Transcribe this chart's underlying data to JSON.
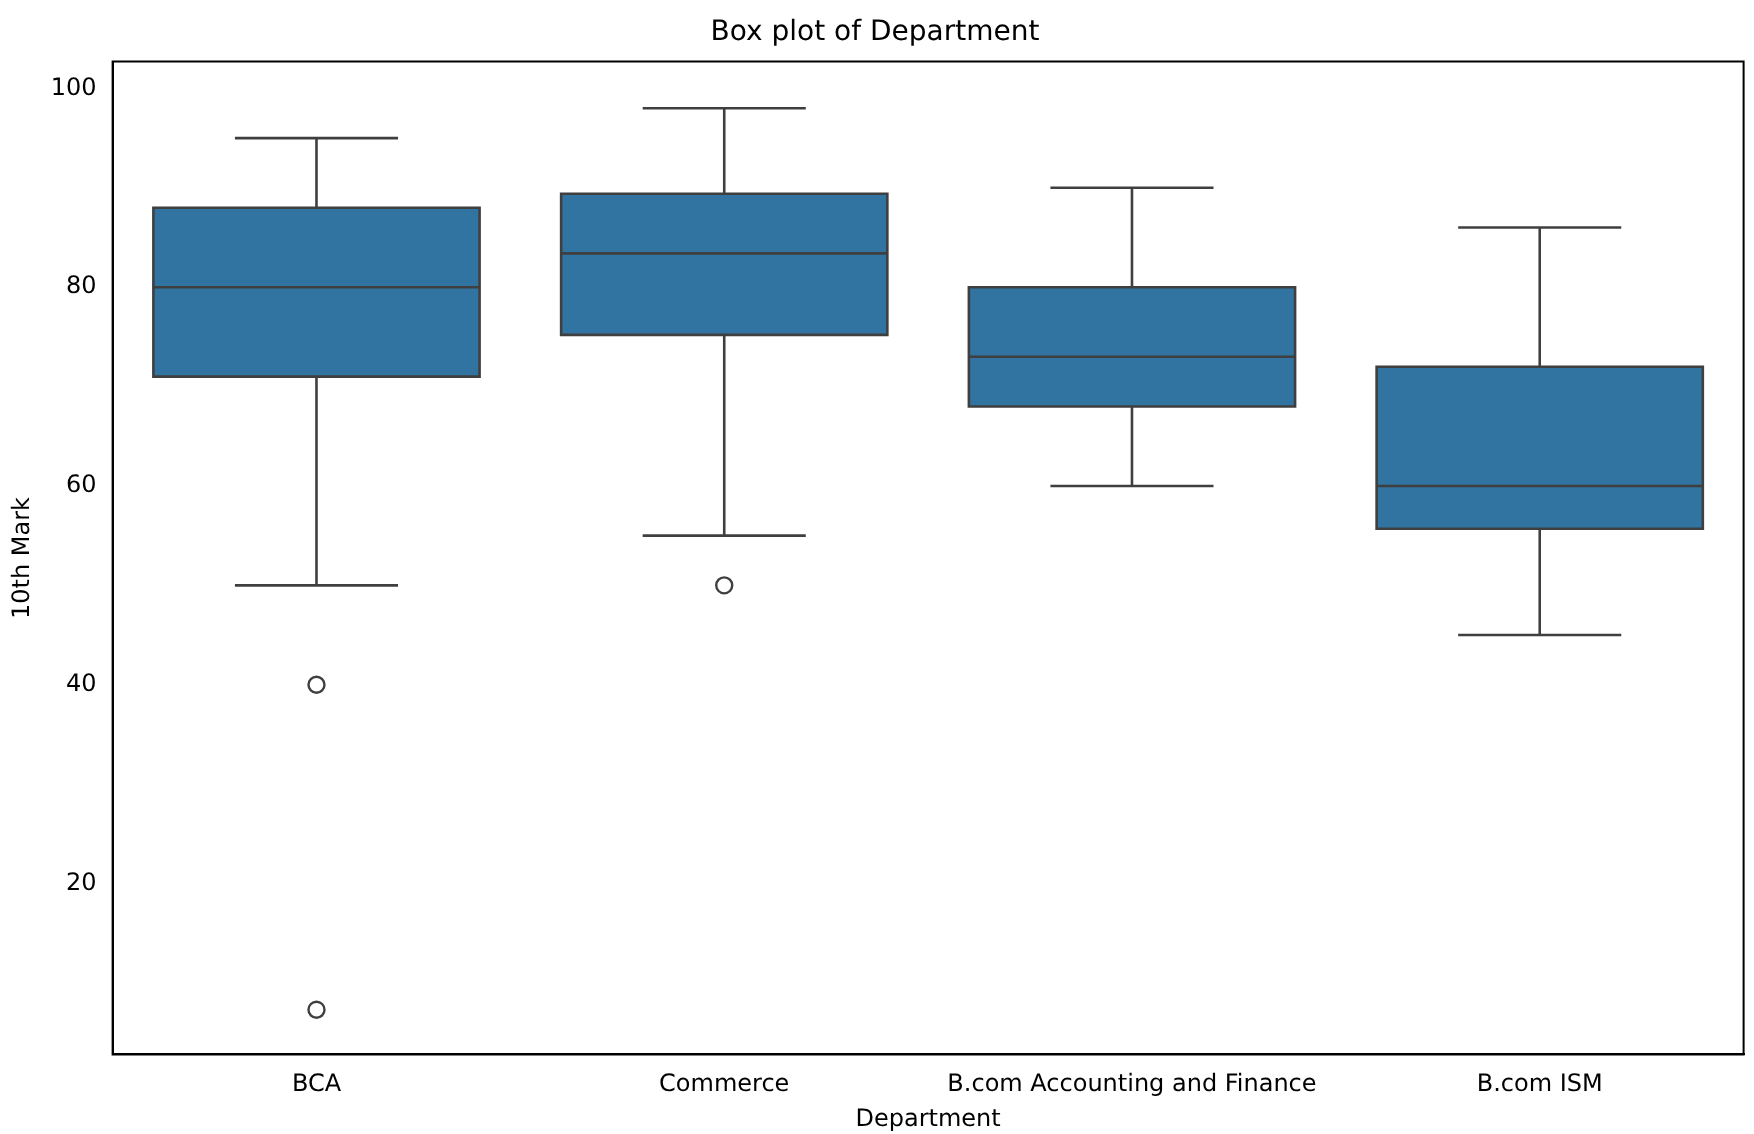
{
  "chart_data": {
    "type": "box",
    "title": "Box plot of Department",
    "xlabel": "Department",
    "ylabel": "10th Mark",
    "categories": [
      "BCA",
      "Commerce",
      "B.com Accounting and Finance",
      "B.com ISM"
    ],
    "color": "#3274a1",
    "ylim": [
      2.8,
      102.7
    ],
    "yticks": [
      20,
      40,
      60,
      80,
      100
    ],
    "grid": false,
    "legend": false,
    "boxes": [
      {
        "low": 50,
        "q1": 71,
        "median": 80,
        "q3": 88,
        "high": 95,
        "outliers": [
          40,
          7.3
        ]
      },
      {
        "low": 55,
        "q1": 75.2,
        "median": 83.4,
        "q3": 89.4,
        "high": 98,
        "outliers": [
          50
        ]
      },
      {
        "low": 60,
        "q1": 68,
        "median": 73,
        "q3": 80,
        "high": 90
      },
      {
        "low": 45,
        "q1": 55.7,
        "median": 60,
        "q3": 72,
        "high": 86
      }
    ]
  }
}
